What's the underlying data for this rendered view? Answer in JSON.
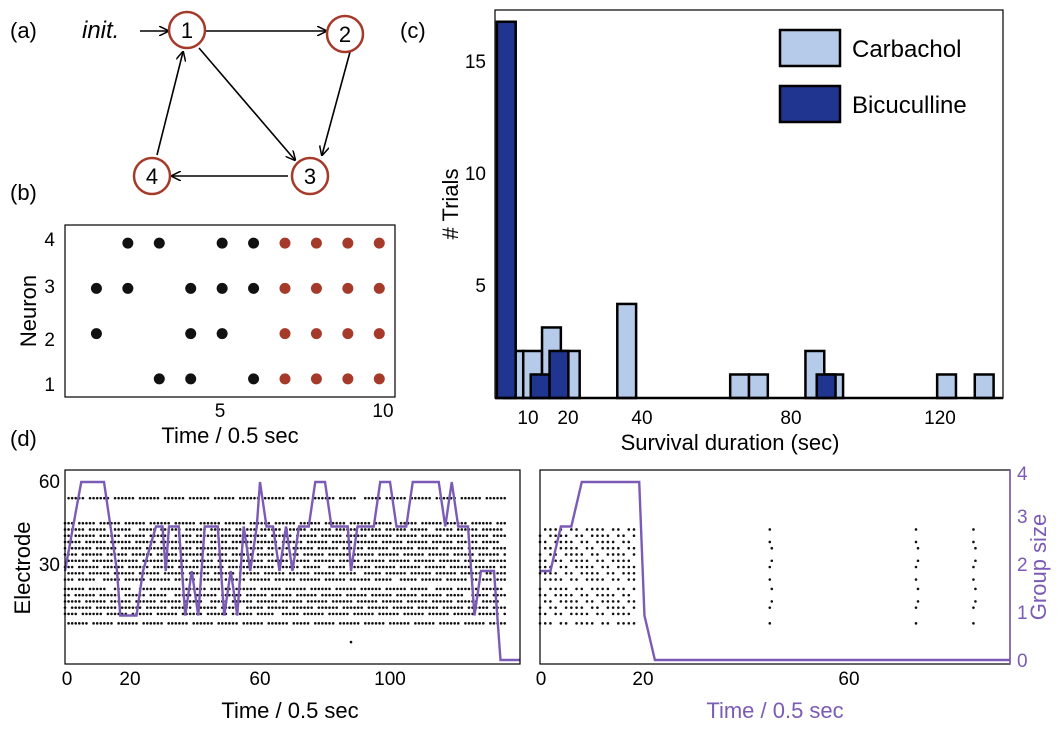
{
  "panels": {
    "a": "(a)",
    "b": "(b)",
    "c": "(c)",
    "d": "(d)"
  },
  "colors": {
    "node_stroke": "#a63a2a",
    "spike_red": "#a63a2a",
    "spike_black": "#111111",
    "carbachol": "#b6cbe9",
    "bicuculline": "#1f3590",
    "group_size": "#7b5bb5"
  },
  "graph": {
    "nodes": [
      "1",
      "2",
      "3",
      "4"
    ],
    "edges": [
      [
        "1",
        "2"
      ],
      [
        "2",
        "3"
      ],
      [
        "1",
        "3"
      ],
      [
        "3",
        "4"
      ],
      [
        "4",
        "1"
      ]
    ],
    "init_label": "init."
  },
  "chart_data": [
    {
      "id": "b",
      "type": "scatter",
      "xlabel": "Time / 0.5 sec",
      "ylabel": "Neuron",
      "xlim": [
        0,
        10.5
      ],
      "ylim": [
        0.6,
        4.4
      ],
      "xticks": [
        "5",
        "10"
      ],
      "yticks": [
        "1",
        "2",
        "3",
        "4"
      ],
      "series": [
        {
          "color": "black",
          "points": [
            [
              2,
              4
            ],
            [
              3,
              4
            ],
            [
              5,
              4
            ],
            [
              6,
              4
            ],
            [
              1,
              3
            ],
            [
              2,
              3
            ],
            [
              4,
              3
            ],
            [
              5,
              3
            ],
            [
              6,
              3
            ],
            [
              1,
              2
            ],
            [
              4,
              2
            ],
            [
              5,
              2
            ],
            [
              3,
              1
            ],
            [
              4,
              1
            ],
            [
              6,
              1
            ]
          ]
        },
        {
          "color": "red",
          "points": [
            [
              7,
              4
            ],
            [
              8,
              4
            ],
            [
              9,
              4
            ],
            [
              10,
              4
            ],
            [
              7,
              3
            ],
            [
              8,
              3
            ],
            [
              9,
              3
            ],
            [
              10,
              3
            ],
            [
              7,
              2
            ],
            [
              8,
              2
            ],
            [
              9,
              2
            ],
            [
              10,
              2
            ],
            [
              7,
              1
            ],
            [
              8,
              1
            ],
            [
              9,
              1
            ],
            [
              10,
              1
            ]
          ]
        }
      ]
    },
    {
      "id": "c",
      "type": "bar",
      "xlabel": "Survival duration (sec)",
      "ylabel": "# Trials",
      "xlim": [
        0,
        135
      ],
      "ylim": [
        0,
        16.5
      ],
      "xticks": [
        "10",
        "20",
        "40",
        "80",
        "120"
      ],
      "yticks": [
        "5",
        "10",
        "15"
      ],
      "legend_position": "top-right",
      "series": [
        {
          "name": "Carbachol",
          "bars": [
            [
              5,
              2
            ],
            [
              10,
              2
            ],
            [
              15,
              3
            ],
            [
              20,
              2
            ],
            [
              35,
              4
            ],
            [
              65,
              1
            ],
            [
              70,
              1
            ],
            [
              85,
              2
            ],
            [
              90,
              1
            ],
            [
              120,
              1
            ],
            [
              130,
              1
            ]
          ]
        },
        {
          "name": "Bicuculline",
          "bars": [
            [
              3,
              16
            ],
            [
              12,
              1
            ],
            [
              17,
              2
            ],
            [
              88,
              1
            ]
          ]
        }
      ]
    },
    {
      "id": "d-left",
      "type": "scatter",
      "xlabel": "Time / 0.5 sec",
      "ylabel": "Electrode",
      "xlim": [
        0,
        140
      ],
      "ylim": [
        0,
        62
      ],
      "xticks": [
        "0",
        "20",
        "60",
        "100"
      ],
      "yticks": [
        "30",
        "60"
      ],
      "spike_rows": [
        53,
        45,
        43,
        41,
        39,
        37,
        35,
        33,
        31,
        29,
        27,
        24,
        22,
        20,
        18,
        16,
        13
      ],
      "group_size_max": 4,
      "group_size_series": [
        [
          0,
          2
        ],
        [
          5,
          4
        ],
        [
          12,
          4
        ],
        [
          14,
          3
        ],
        [
          16,
          2
        ],
        [
          17,
          1
        ],
        [
          22,
          1
        ],
        [
          24,
          2
        ],
        [
          28,
          3
        ],
        [
          30,
          3
        ],
        [
          31,
          2
        ],
        [
          32,
          3
        ],
        [
          35,
          3
        ],
        [
          37,
          1
        ],
        [
          39,
          2
        ],
        [
          41,
          1
        ],
        [
          43,
          3
        ],
        [
          47,
          3
        ],
        [
          49,
          1
        ],
        [
          51,
          2
        ],
        [
          53,
          1
        ],
        [
          55,
          3
        ],
        [
          57,
          2
        ],
        [
          59,
          3
        ],
        [
          60,
          4
        ],
        [
          62,
          3
        ],
        [
          64,
          3
        ],
        [
          66,
          2
        ],
        [
          68,
          3
        ],
        [
          70,
          2
        ],
        [
          72,
          3
        ],
        [
          75,
          3
        ],
        [
          77,
          4
        ],
        [
          80,
          4
        ],
        [
          82,
          3
        ],
        [
          85,
          3
        ],
        [
          87,
          3
        ],
        [
          88,
          2
        ],
        [
          90,
          3
        ],
        [
          95,
          3
        ],
        [
          97,
          4
        ],
        [
          100,
          4
        ],
        [
          102,
          3
        ],
        [
          105,
          3
        ],
        [
          107,
          4
        ],
        [
          115,
          4
        ],
        [
          117,
          3
        ],
        [
          119,
          4
        ],
        [
          121,
          3
        ],
        [
          124,
          3
        ],
        [
          126,
          1
        ],
        [
          128,
          2
        ],
        [
          132,
          2
        ],
        [
          134,
          0
        ],
        [
          140,
          0
        ]
      ]
    },
    {
      "id": "d-right",
      "type": "scatter",
      "xlabel": "Time / 0.5 sec",
      "ylabel": "Group size",
      "xlim": [
        0,
        90
      ],
      "ylim": [
        0,
        4
      ],
      "xticks": [
        "0",
        "20",
        "60"
      ],
      "yticks": [
        "0",
        "1",
        "2",
        "3",
        "4"
      ],
      "spike_rows": [
        43,
        41,
        39,
        37,
        35,
        33,
        31,
        29,
        27,
        24,
        22,
        20,
        18,
        16,
        13
      ],
      "burst_times": [
        44,
        72,
        83
      ],
      "group_size_series": [
        [
          0,
          2
        ],
        [
          2,
          2
        ],
        [
          4,
          3
        ],
        [
          6,
          3
        ],
        [
          8,
          4
        ],
        [
          19,
          4
        ],
        [
          20,
          1
        ],
        [
          22,
          0
        ],
        [
          90,
          0
        ]
      ]
    }
  ]
}
